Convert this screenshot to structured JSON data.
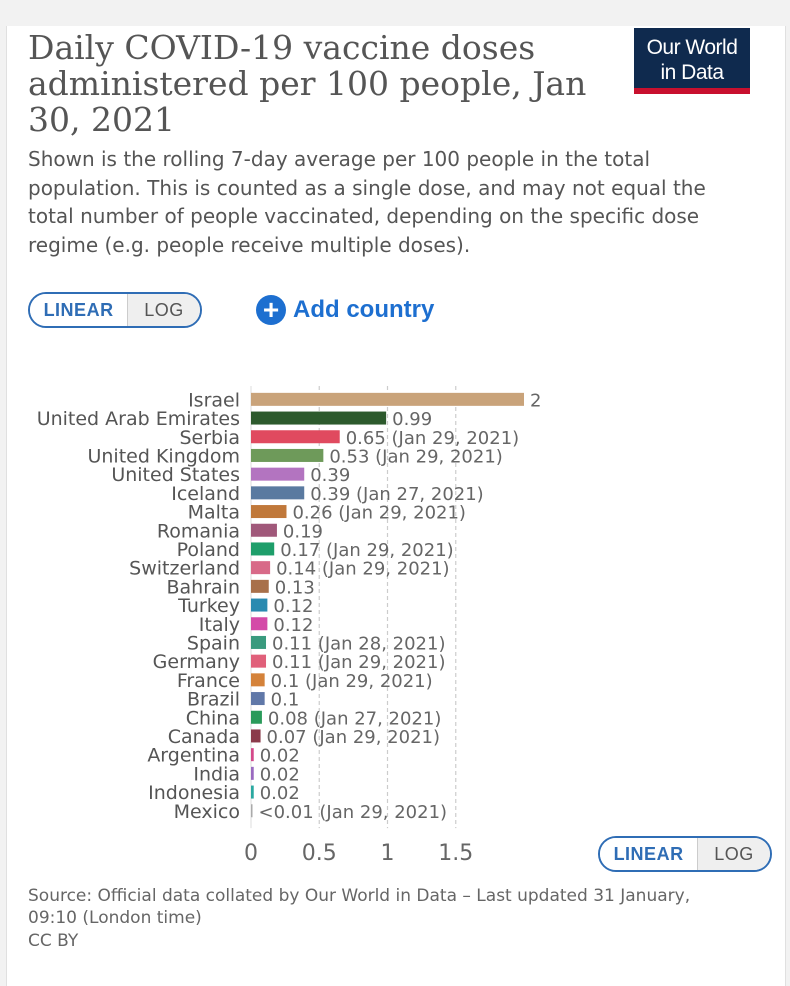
{
  "header": {
    "title": "Daily COVID-19 vaccine doses administered per 100 people, Jan 30, 2021",
    "subtitle": "Shown is the rolling 7-day average per 100 people in the total population. This is counted as a single dose, and may not equal the total number of people vaccinated, depending on the specific dose regime (e.g. people receive multiple doses).",
    "logo_line1": "Our World",
    "logo_line2": "in Data"
  },
  "controls": {
    "linear_label": "LINEAR",
    "log_label": "LOG",
    "add_country_label": "Add country",
    "add_country_icon": "plus-circle-icon"
  },
  "footer": {
    "source": "Source: Official data collated by Our World in Data – Last updated 31 January, 09:10 (London time)",
    "license": "CC BY"
  },
  "colors": {
    "accent": "#1d6fd0",
    "logo_bg": "#0f2a4e",
    "logo_stripe": "#c8102e"
  },
  "chart_data": {
    "type": "bar",
    "orientation": "horizontal",
    "title": "",
    "xlabel": "",
    "ylabel": "",
    "xlim": [
      0,
      2
    ],
    "xticks": [
      0,
      0.5,
      1,
      1.5
    ],
    "xtick_labels": [
      "0",
      "0.5",
      "1",
      "1.5"
    ],
    "grid": true,
    "bars": [
      {
        "category": "Israel",
        "value": 2,
        "label": "2",
        "color": "#c9a37a"
      },
      {
        "category": "United Arab Emirates",
        "value": 0.99,
        "label": "0.99",
        "color": "#2d5a2d"
      },
      {
        "category": "Serbia",
        "value": 0.65,
        "label": "0.65 (Jan 29, 2021)",
        "color": "#e04a5f"
      },
      {
        "category": "United Kingdom",
        "value": 0.53,
        "label": "0.53 (Jan 29, 2021)",
        "color": "#6e9a5a"
      },
      {
        "category": "United States",
        "value": 0.39,
        "label": "0.39",
        "color": "#b374c0"
      },
      {
        "category": "Iceland",
        "value": 0.39,
        "label": "0.39 (Jan 27, 2021)",
        "color": "#5a7aa0"
      },
      {
        "category": "Malta",
        "value": 0.26,
        "label": "0.26 (Jan 29, 2021)",
        "color": "#c0783a"
      },
      {
        "category": "Romania",
        "value": 0.19,
        "label": "0.19",
        "color": "#a0587a"
      },
      {
        "category": "Poland",
        "value": 0.17,
        "label": "0.17 (Jan 29, 2021)",
        "color": "#1e9e6a"
      },
      {
        "category": "Switzerland",
        "value": 0.14,
        "label": "0.14 (Jan 29, 2021)",
        "color": "#d86a88"
      },
      {
        "category": "Bahrain",
        "value": 0.13,
        "label": "0.13",
        "color": "#a8704a"
      },
      {
        "category": "Turkey",
        "value": 0.12,
        "label": "0.12",
        "color": "#2a8ab0"
      },
      {
        "category": "Italy",
        "value": 0.12,
        "label": "0.12",
        "color": "#d44aa8"
      },
      {
        "category": "Spain",
        "value": 0.11,
        "label": "0.11 (Jan 28, 2021)",
        "color": "#3a9a7e"
      },
      {
        "category": "Germany",
        "value": 0.11,
        "label": "0.11 (Jan 29, 2021)",
        "color": "#e0607a"
      },
      {
        "category": "France",
        "value": 0.1,
        "label": "0.1 (Jan 29, 2021)",
        "color": "#d4823a"
      },
      {
        "category": "Brazil",
        "value": 0.1,
        "label": "0.1",
        "color": "#6078a8"
      },
      {
        "category": "China",
        "value": 0.08,
        "label": "0.08 (Jan 27, 2021)",
        "color": "#2a9a5a"
      },
      {
        "category": "Canada",
        "value": 0.07,
        "label": "0.07 (Jan 29, 2021)",
        "color": "#8a3a4a"
      },
      {
        "category": "Argentina",
        "value": 0.02,
        "label": "0.02",
        "color": "#d44a8a"
      },
      {
        "category": "India",
        "value": 0.02,
        "label": "0.02",
        "color": "#9a6ac0"
      },
      {
        "category": "Indonesia",
        "value": 0.02,
        "label": "0.02",
        "color": "#2aa8a0"
      },
      {
        "category": "Mexico",
        "value": 0.005,
        "label": "<0.01 (Jan 29, 2021)",
        "color": "#aaaaaa"
      }
    ]
  }
}
